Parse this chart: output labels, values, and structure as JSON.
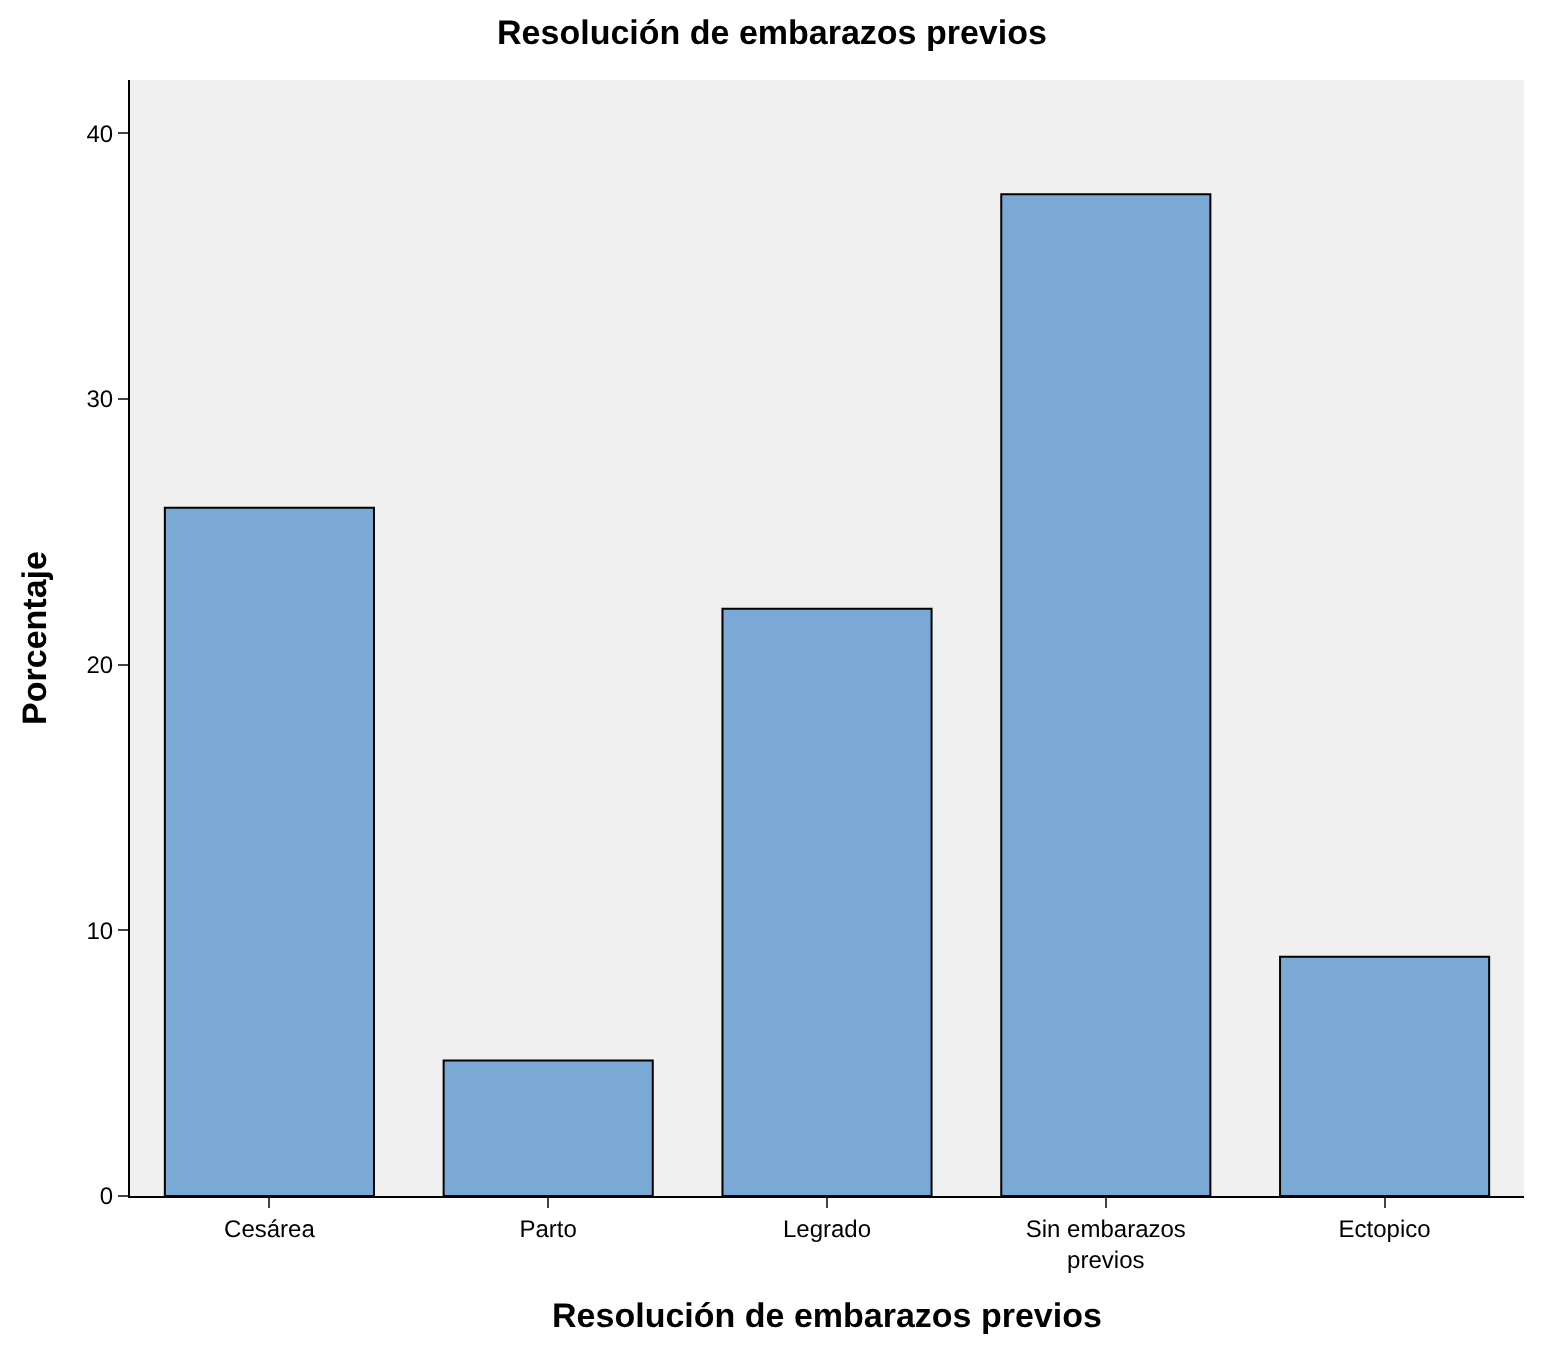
{
  "chart_data": {
    "type": "bar",
    "title": "Resolución de embarazos previos",
    "xlabel": "Resolución de embarazos previos",
    "ylabel": "Porcentaje",
    "categories": [
      "Cesárea",
      "Parto",
      "Legrado",
      "Sin embarazos previos",
      "Ectopico"
    ],
    "values": [
      25.9,
      5.1,
      22.1,
      37.7,
      9.0
    ],
    "color": "#7ba9d6",
    "ylim": [
      0,
      42
    ],
    "yticks": [
      0,
      10,
      20,
      30,
      40
    ]
  }
}
